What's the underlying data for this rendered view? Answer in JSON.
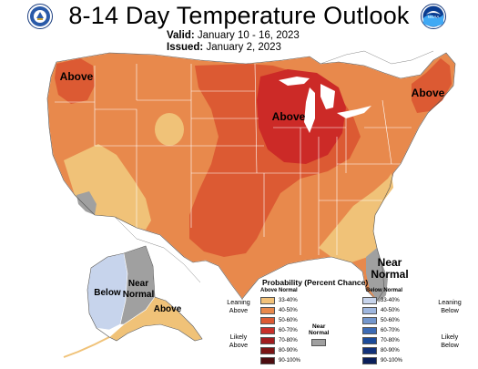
{
  "header": {
    "title": "8-14 Day Temperature Outlook",
    "valid_label": "Valid:",
    "valid_value": "January 10 - 16, 2023",
    "issued_label": "Issued:",
    "issued_value": "January 2, 2023"
  },
  "logos": {
    "left": "noaa-emblem-left-icon",
    "right": "noaa-emblem-right-icon",
    "right_text": "NOAA"
  },
  "map": {
    "labels": {
      "pacific_nw": "Above",
      "great_lakes": "Above",
      "northeast": "Above",
      "alaska_east": "Above",
      "alaska_west": "Below",
      "alaska_near_1": "Near",
      "alaska_near_2": "Normal",
      "florida_near_1": "Near",
      "florida_near_2": "Normal"
    },
    "colors": {
      "above_33_40": "#f0c278",
      "above_40_50": "#e8894c",
      "above_50_60": "#dc5a33",
      "above_60_70": "#cc2a27",
      "near_normal": "#a0a0a0",
      "below_33_40": "#c7d4ec",
      "border": "#ffffff",
      "outline": "#555555"
    }
  },
  "legend": {
    "title": "Probability (Percent Chance)",
    "above_header": "Above Normal",
    "below_header": "Below Normal",
    "near_normal_line1": "Near",
    "near_normal_line2": "Normal",
    "leaning_above": [
      "Leaning",
      "Above"
    ],
    "likely_above": [
      "Likely",
      "Above"
    ],
    "leaning_below": [
      "Leaning",
      "Below"
    ],
    "likely_below": [
      "Likely",
      "Below"
    ],
    "above_rows": [
      {
        "label": "33-40%",
        "color": "#f2c27a"
      },
      {
        "label": "40-50%",
        "color": "#e8894c"
      },
      {
        "label": "50-60%",
        "color": "#dc5a33"
      },
      {
        "label": "60-70%",
        "color": "#c8302a"
      },
      {
        "label": "70-80%",
        "color": "#a01c1e"
      },
      {
        "label": "80-90%",
        "color": "#7a1515"
      },
      {
        "label": "90-100%",
        "color": "#4c0d10"
      }
    ],
    "below_rows": [
      {
        "label": "33-40%",
        "color": "#c7d4ec"
      },
      {
        "label": "40-50%",
        "color": "#9fb7df"
      },
      {
        "label": "50-60%",
        "color": "#7497cd"
      },
      {
        "label": "60-70%",
        "color": "#3d6bb5"
      },
      {
        "label": "70-80%",
        "color": "#1c4b9a"
      },
      {
        "label": "80-90%",
        "color": "#13327a"
      },
      {
        "label": "90-100%",
        "color": "#0a1f5a"
      }
    ],
    "near_color": "#a0a0a0"
  }
}
